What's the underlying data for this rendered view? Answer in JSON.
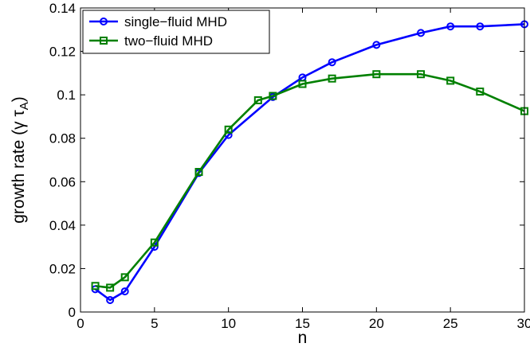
{
  "chart_data": {
    "type": "line",
    "xlabel": "n",
    "ylabel": "growth rate (γ τ",
    "ylabel_sub": "A",
    "ylabel_close": ")",
    "xlim": [
      0,
      30
    ],
    "ylim": [
      0,
      0.14
    ],
    "x_ticks": [
      0,
      5,
      10,
      15,
      20,
      25,
      30
    ],
    "x_tick_labels": [
      "0",
      "5",
      "10",
      "15",
      "20",
      "25",
      "30"
    ],
    "y_ticks": [
      0,
      0.02,
      0.04,
      0.06,
      0.08,
      0.1,
      0.12,
      0.14
    ],
    "y_tick_labels": [
      "0",
      "0.02",
      "0.04",
      "0.06",
      "0.08",
      "0.1",
      "0.12",
      "0.14"
    ],
    "grid": false,
    "legend_position": "top-left",
    "series": [
      {
        "name": "single−fluid MHD",
        "color": "#0000ff",
        "marker": "circle",
        "x": [
          1,
          2,
          3,
          5,
          8,
          10,
          13,
          15,
          17,
          20,
          23,
          25,
          27,
          30
        ],
        "y": [
          0.0105,
          0.0055,
          0.0095,
          0.03,
          0.064,
          0.0815,
          0.099,
          0.108,
          0.115,
          0.123,
          0.1285,
          0.1315,
          0.1315,
          0.1325
        ]
      },
      {
        "name": "two−fluid MHD",
        "color": "#008000",
        "marker": "square",
        "x": [
          1,
          2,
          3,
          5,
          8,
          10,
          12,
          13,
          15,
          17,
          20,
          23,
          25,
          27,
          30
        ],
        "y": [
          0.012,
          0.0112,
          0.016,
          0.032,
          0.0645,
          0.084,
          0.0975,
          0.0995,
          0.105,
          0.1075,
          0.1095,
          0.1095,
          0.1065,
          0.1015,
          0.0925
        ]
      }
    ]
  }
}
